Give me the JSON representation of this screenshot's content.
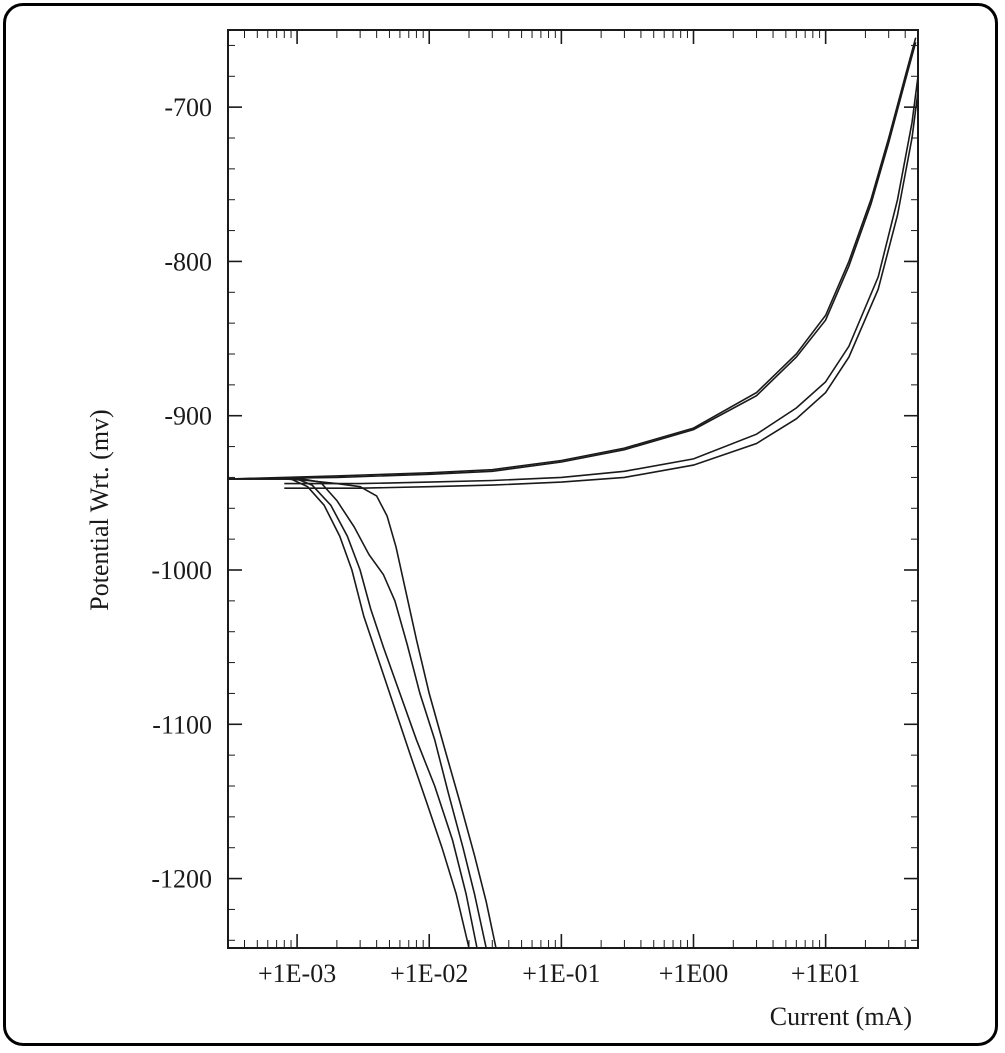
{
  "chart_data": {
    "type": "line",
    "title": "",
    "xlabel": "Current (mA)",
    "ylabel": "Potential Wrt. (mv)",
    "x_scale": "log",
    "xlim": [
      0.0003,
      50
    ],
    "ylim": [
      -1245,
      -650
    ],
    "x_ticks": [
      {
        "value": 0.001,
        "label": "+1E-03"
      },
      {
        "value": 0.01,
        "label": "+1E-02"
      },
      {
        "value": 0.1,
        "label": "+1E-01"
      },
      {
        "value": 1,
        "label": "+1E00"
      },
      {
        "value": 10,
        "label": "+1E01"
      }
    ],
    "y_ticks": [
      {
        "value": -700,
        "label": "-700"
      },
      {
        "value": -800,
        "label": "-800"
      },
      {
        "value": -900,
        "label": "-900"
      },
      {
        "value": -1000,
        "label": "-1000"
      },
      {
        "value": -1100,
        "label": "-1100"
      },
      {
        "value": -1200,
        "label": "-1200"
      }
    ],
    "grid": false,
    "series": [
      {
        "points": [
          [
            0.0003,
            -941
          ],
          [
            0.0006,
            -941
          ],
          [
            0.0009,
            -941
          ],
          [
            0.0012,
            -946
          ],
          [
            0.0016,
            -958
          ],
          [
            0.0021,
            -978
          ],
          [
            0.0026,
            -1000
          ],
          [
            0.0032,
            -1030
          ],
          [
            0.0042,
            -1060
          ],
          [
            0.0055,
            -1090
          ],
          [
            0.0072,
            -1120
          ],
          [
            0.0095,
            -1150
          ],
          [
            0.0125,
            -1180
          ],
          [
            0.016,
            -1210
          ],
          [
            0.02,
            -1245
          ]
        ]
      },
      {
        "points": [
          [
            0.0003,
            -941
          ],
          [
            0.0007,
            -941
          ],
          [
            0.001,
            -941
          ],
          [
            0.0013,
            -945
          ],
          [
            0.0018,
            -958
          ],
          [
            0.0024,
            -978
          ],
          [
            0.003,
            -1000
          ],
          [
            0.0036,
            -1025
          ],
          [
            0.0045,
            -1050
          ],
          [
            0.006,
            -1080
          ],
          [
            0.008,
            -1110
          ],
          [
            0.011,
            -1140
          ],
          [
            0.015,
            -1175
          ],
          [
            0.019,
            -1210
          ],
          [
            0.023,
            -1245
          ]
        ]
      },
      {
        "points": [
          [
            0.0003,
            -941
          ],
          [
            0.0008,
            -941
          ],
          [
            0.0011,
            -941
          ],
          [
            0.0015,
            -943
          ],
          [
            0.002,
            -955
          ],
          [
            0.0027,
            -972
          ],
          [
            0.0035,
            -990
          ],
          [
            0.0045,
            -1003
          ],
          [
            0.0055,
            -1020
          ],
          [
            0.0068,
            -1048
          ],
          [
            0.0085,
            -1080
          ],
          [
            0.011,
            -1110
          ],
          [
            0.014,
            -1145
          ],
          [
            0.018,
            -1180
          ],
          [
            0.022,
            -1210
          ],
          [
            0.027,
            -1245
          ]
        ]
      },
      {
        "points": [
          [
            0.0003,
            -941
          ],
          [
            0.0008,
            -941
          ],
          [
            0.0012,
            -942
          ],
          [
            0.002,
            -944
          ],
          [
            0.003,
            -946
          ],
          [
            0.004,
            -952
          ],
          [
            0.0048,
            -965
          ],
          [
            0.0056,
            -985
          ],
          [
            0.0065,
            -1010
          ],
          [
            0.008,
            -1045
          ],
          [
            0.01,
            -1080
          ],
          [
            0.013,
            -1115
          ],
          [
            0.017,
            -1150
          ],
          [
            0.022,
            -1185
          ],
          [
            0.027,
            -1215
          ],
          [
            0.032,
            -1245
          ]
        ]
      },
      {
        "points": [
          [
            0.0003,
            -941
          ],
          [
            0.002,
            -939
          ],
          [
            0.01,
            -937
          ],
          [
            0.03,
            -935
          ],
          [
            0.1,
            -929
          ],
          [
            0.3,
            -921
          ],
          [
            1,
            -908
          ],
          [
            3,
            -885
          ],
          [
            6,
            -860
          ],
          [
            10,
            -835
          ],
          [
            15,
            -800
          ],
          [
            22,
            -760
          ],
          [
            30,
            -720
          ],
          [
            40,
            -680
          ],
          [
            48,
            -655
          ]
        ]
      },
      {
        "points": [
          [
            0.0003,
            -941
          ],
          [
            0.002,
            -940
          ],
          [
            0.01,
            -938
          ],
          [
            0.03,
            -936
          ],
          [
            0.1,
            -930
          ],
          [
            0.3,
            -922
          ],
          [
            1,
            -909
          ],
          [
            3,
            -887
          ],
          [
            6,
            -862
          ],
          [
            10,
            -838
          ],
          [
            15,
            -803
          ],
          [
            22,
            -763
          ],
          [
            30,
            -723
          ],
          [
            40,
            -683
          ],
          [
            48,
            -658
          ]
        ]
      },
      {
        "points": [
          [
            0.0008,
            -944
          ],
          [
            0.003,
            -944
          ],
          [
            0.01,
            -943
          ],
          [
            0.03,
            -942
          ],
          [
            0.1,
            -940
          ],
          [
            0.3,
            -936
          ],
          [
            1,
            -928
          ],
          [
            3,
            -912
          ],
          [
            6,
            -895
          ],
          [
            10,
            -878
          ],
          [
            15,
            -855
          ],
          [
            25,
            -810
          ],
          [
            35,
            -760
          ],
          [
            45,
            -710
          ],
          [
            50,
            -680
          ]
        ]
      },
      {
        "points": [
          [
            0.0008,
            -947
          ],
          [
            0.003,
            -947
          ],
          [
            0.01,
            -946
          ],
          [
            0.03,
            -945
          ],
          [
            0.1,
            -943
          ],
          [
            0.3,
            -940
          ],
          [
            1,
            -932
          ],
          [
            3,
            -918
          ],
          [
            6,
            -902
          ],
          [
            10,
            -885
          ],
          [
            15,
            -862
          ],
          [
            25,
            -818
          ],
          [
            35,
            -770
          ],
          [
            45,
            -720
          ],
          [
            50,
            -690
          ]
        ]
      }
    ]
  }
}
